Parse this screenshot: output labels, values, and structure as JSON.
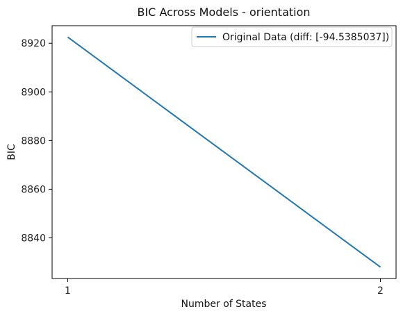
{
  "chart_data": {
    "type": "line",
    "title": "BIC Across Models - orientation",
    "xlabel": "Number of States",
    "ylabel": "BIC",
    "x": [
      1,
      2
    ],
    "series": [
      {
        "name": "Original Data (diff: [-94.5385037])",
        "values": [
          8922.5,
          8828.0
        ],
        "color": "#1f77b4"
      }
    ],
    "xticks": [
      1,
      2
    ],
    "yticks": [
      8840,
      8860,
      8880,
      8900,
      8920
    ],
    "xlim": [
      0.95,
      2.05
    ],
    "ylim": [
      8823.3,
      8927.2
    ],
    "grid": false,
    "legend_position": "top-right"
  }
}
